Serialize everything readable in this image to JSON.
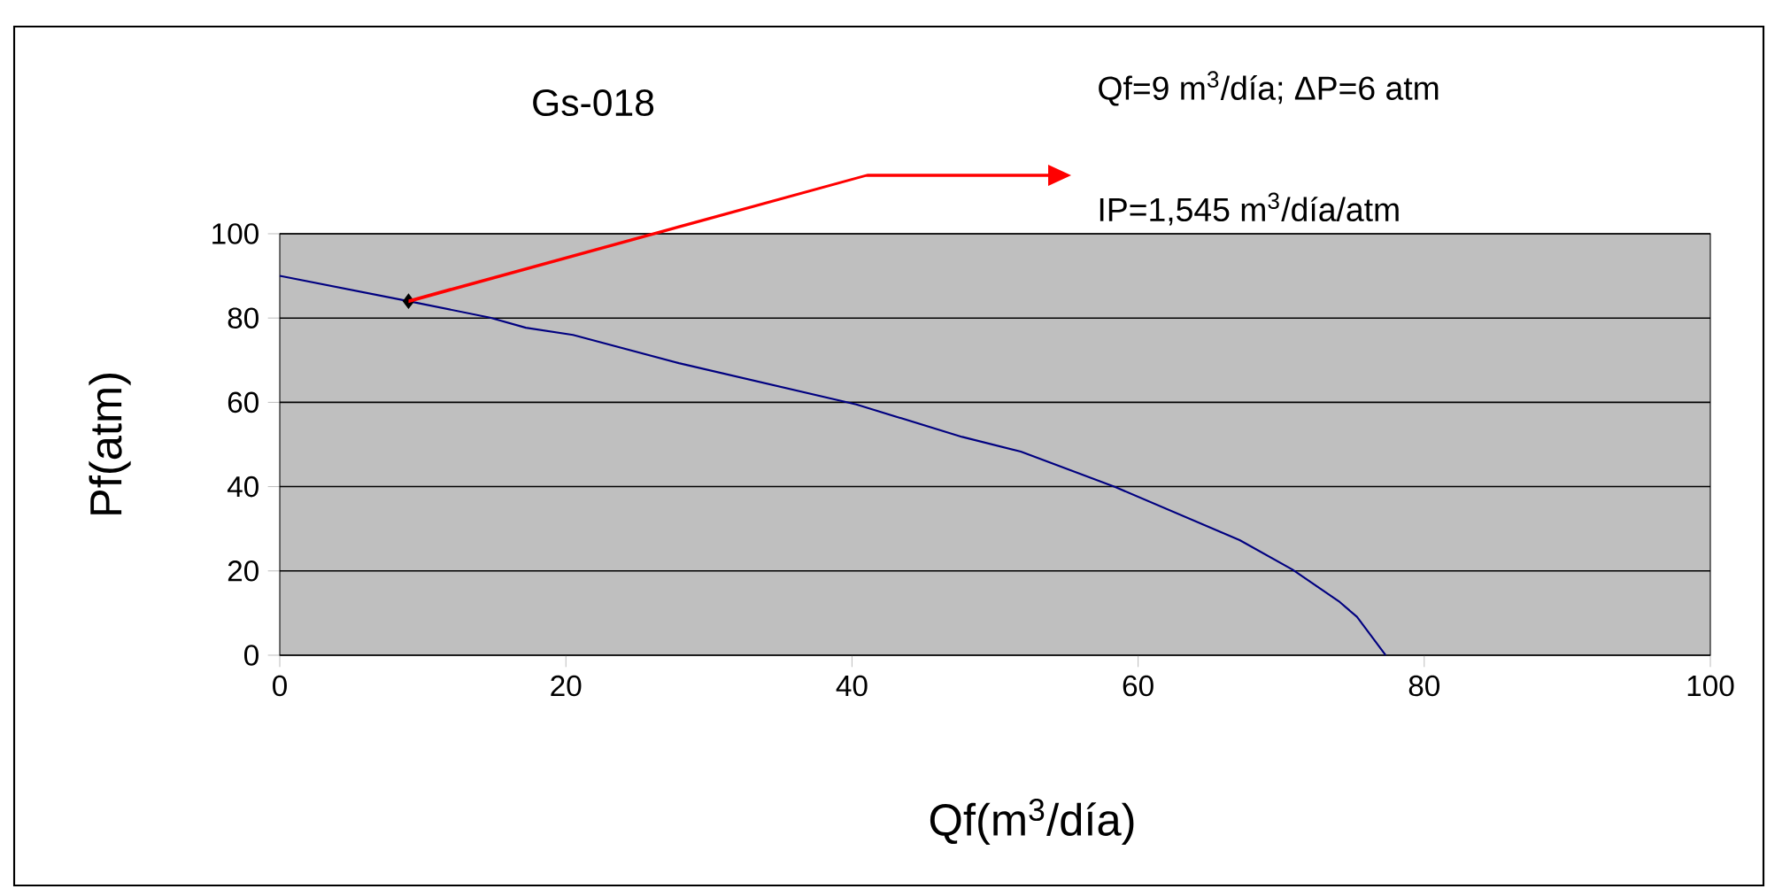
{
  "chart_data": {
    "type": "line",
    "title": "Gs-018",
    "xlabel": "Qf(m$^{3}$/día)",
    "ylabel": "Pf(atm)",
    "xlim": [
      0,
      100
    ],
    "ylim": [
      0,
      100
    ],
    "xticks": [
      0,
      20,
      40,
      60,
      80,
      100
    ],
    "yticks": [
      0,
      20,
      40,
      60,
      80,
      100
    ],
    "grid": "y",
    "annotations": [
      "Qf=9 m$^{3}$/día; ΔP=6 atm",
      "IP=1,545 m$^{3}$/día/atm"
    ],
    "series": [
      {
        "color": "#000080",
        "marker": "none",
        "x": [
          0,
          9,
          14.7,
          17.2,
          20.5,
          27.9,
          40.3,
          47.7,
          51.8,
          58.4,
          67.1,
          70.8,
          74.1,
          75.3,
          77.3
        ],
        "values": [
          90,
          84,
          80.1,
          77.7,
          76,
          69.3,
          59.5,
          51.8,
          48.3,
          39.9,
          27.3,
          20.3,
          12.6,
          9.1,
          0
        ]
      },
      {
        "type": "scatter",
        "color": "#000000",
        "marker": "diamond",
        "x": [
          9
        ],
        "values": [
          84
        ]
      }
    ]
  }
}
